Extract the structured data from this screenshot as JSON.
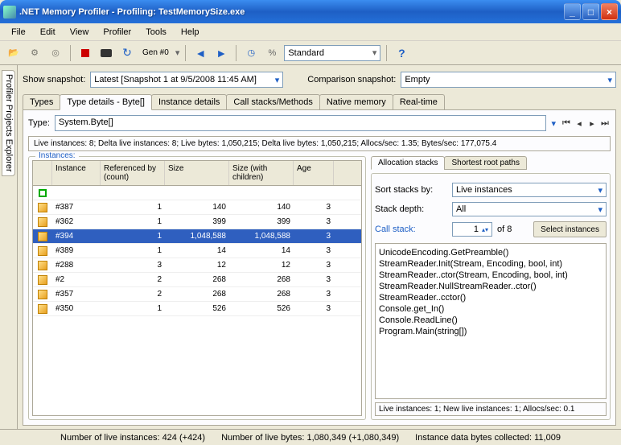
{
  "title": ".NET Memory Profiler - Profiling: TestMemorySize.exe",
  "menus": [
    "File",
    "Edit",
    "View",
    "Profiler",
    "Tools",
    "Help"
  ],
  "toolbar": {
    "gen_label": "Gen #0",
    "scheme_label": "Standard"
  },
  "snapshot": {
    "show_label": "Show snapshot:",
    "show_value": "Latest [Snapshot 1 at 9/5/2008 11:45 AM]",
    "compare_label": "Comparison snapshot:",
    "compare_value": "Empty"
  },
  "tabs": [
    "Types",
    "Type details - Byte[]",
    "Instance details",
    "Call stacks/Methods",
    "Native memory",
    "Real-time"
  ],
  "active_tab": 1,
  "type": {
    "label": "Type:",
    "value": "System.Byte[]"
  },
  "stats_line": "Live instances: 8; Delta live instances: 8; Live bytes: 1,050,215; Delta live bytes: 1,050,215; Allocs/sec: 1.35; Bytes/sec: 177,075.4",
  "instances": {
    "legend": "Instances:",
    "columns": [
      "Instance",
      "Referenced by (count)",
      "Size",
      "Size (with children)",
      "Age"
    ],
    "rows": [
      {
        "inst": "#387",
        "ref": "1",
        "size": "140",
        "sizec": "140",
        "age": "3"
      },
      {
        "inst": "#362",
        "ref": "1",
        "size": "399",
        "sizec": "399",
        "age": "3"
      },
      {
        "inst": "#394",
        "ref": "1",
        "size": "1,048,588",
        "sizec": "1,048,588",
        "age": "3",
        "selected": true
      },
      {
        "inst": "#389",
        "ref": "1",
        "size": "14",
        "sizec": "14",
        "age": "3"
      },
      {
        "inst": "#288",
        "ref": "3",
        "size": "12",
        "sizec": "12",
        "age": "3"
      },
      {
        "inst": "#2",
        "ref": "2",
        "size": "268",
        "sizec": "268",
        "age": "3"
      },
      {
        "inst": "#357",
        "ref": "2",
        "size": "268",
        "sizec": "268",
        "age": "3"
      },
      {
        "inst": "#350",
        "ref": "1",
        "size": "526",
        "sizec": "526",
        "age": "3"
      }
    ]
  },
  "alloc": {
    "tabs": [
      "Allocation stacks",
      "Shortest root paths"
    ],
    "sort_label": "Sort stacks by:",
    "sort_value": "Live instances",
    "depth_label": "Stack depth:",
    "depth_value": "All",
    "callstack_label": "Call stack:",
    "callstack_num": "1",
    "callstack_of": "of 8",
    "select_btn": "Select instances",
    "stack": [
      "UnicodeEncoding.GetPreamble()",
      "StreamReader.Init(Stream, Encoding, bool, int)",
      "StreamReader..ctor(Stream, Encoding, bool, int)",
      "StreamReader.NullStreamReader..ctor()",
      "StreamReader..cctor()",
      "Console.get_In()",
      "Console.ReadLine()",
      "Program.Main(string[])"
    ],
    "bottom_stats": "Live instances: 1; New live instances: 1; Allocs/sec: 0.1"
  },
  "sidebar_label": "Profiler Projects Explorer",
  "statusbar": {
    "live_instances": "Number of live instances: 424 (+424)",
    "live_bytes": "Number of live bytes: 1,080,349 (+1,080,349)",
    "data_bytes": "Instance data bytes collected: 11,009"
  }
}
